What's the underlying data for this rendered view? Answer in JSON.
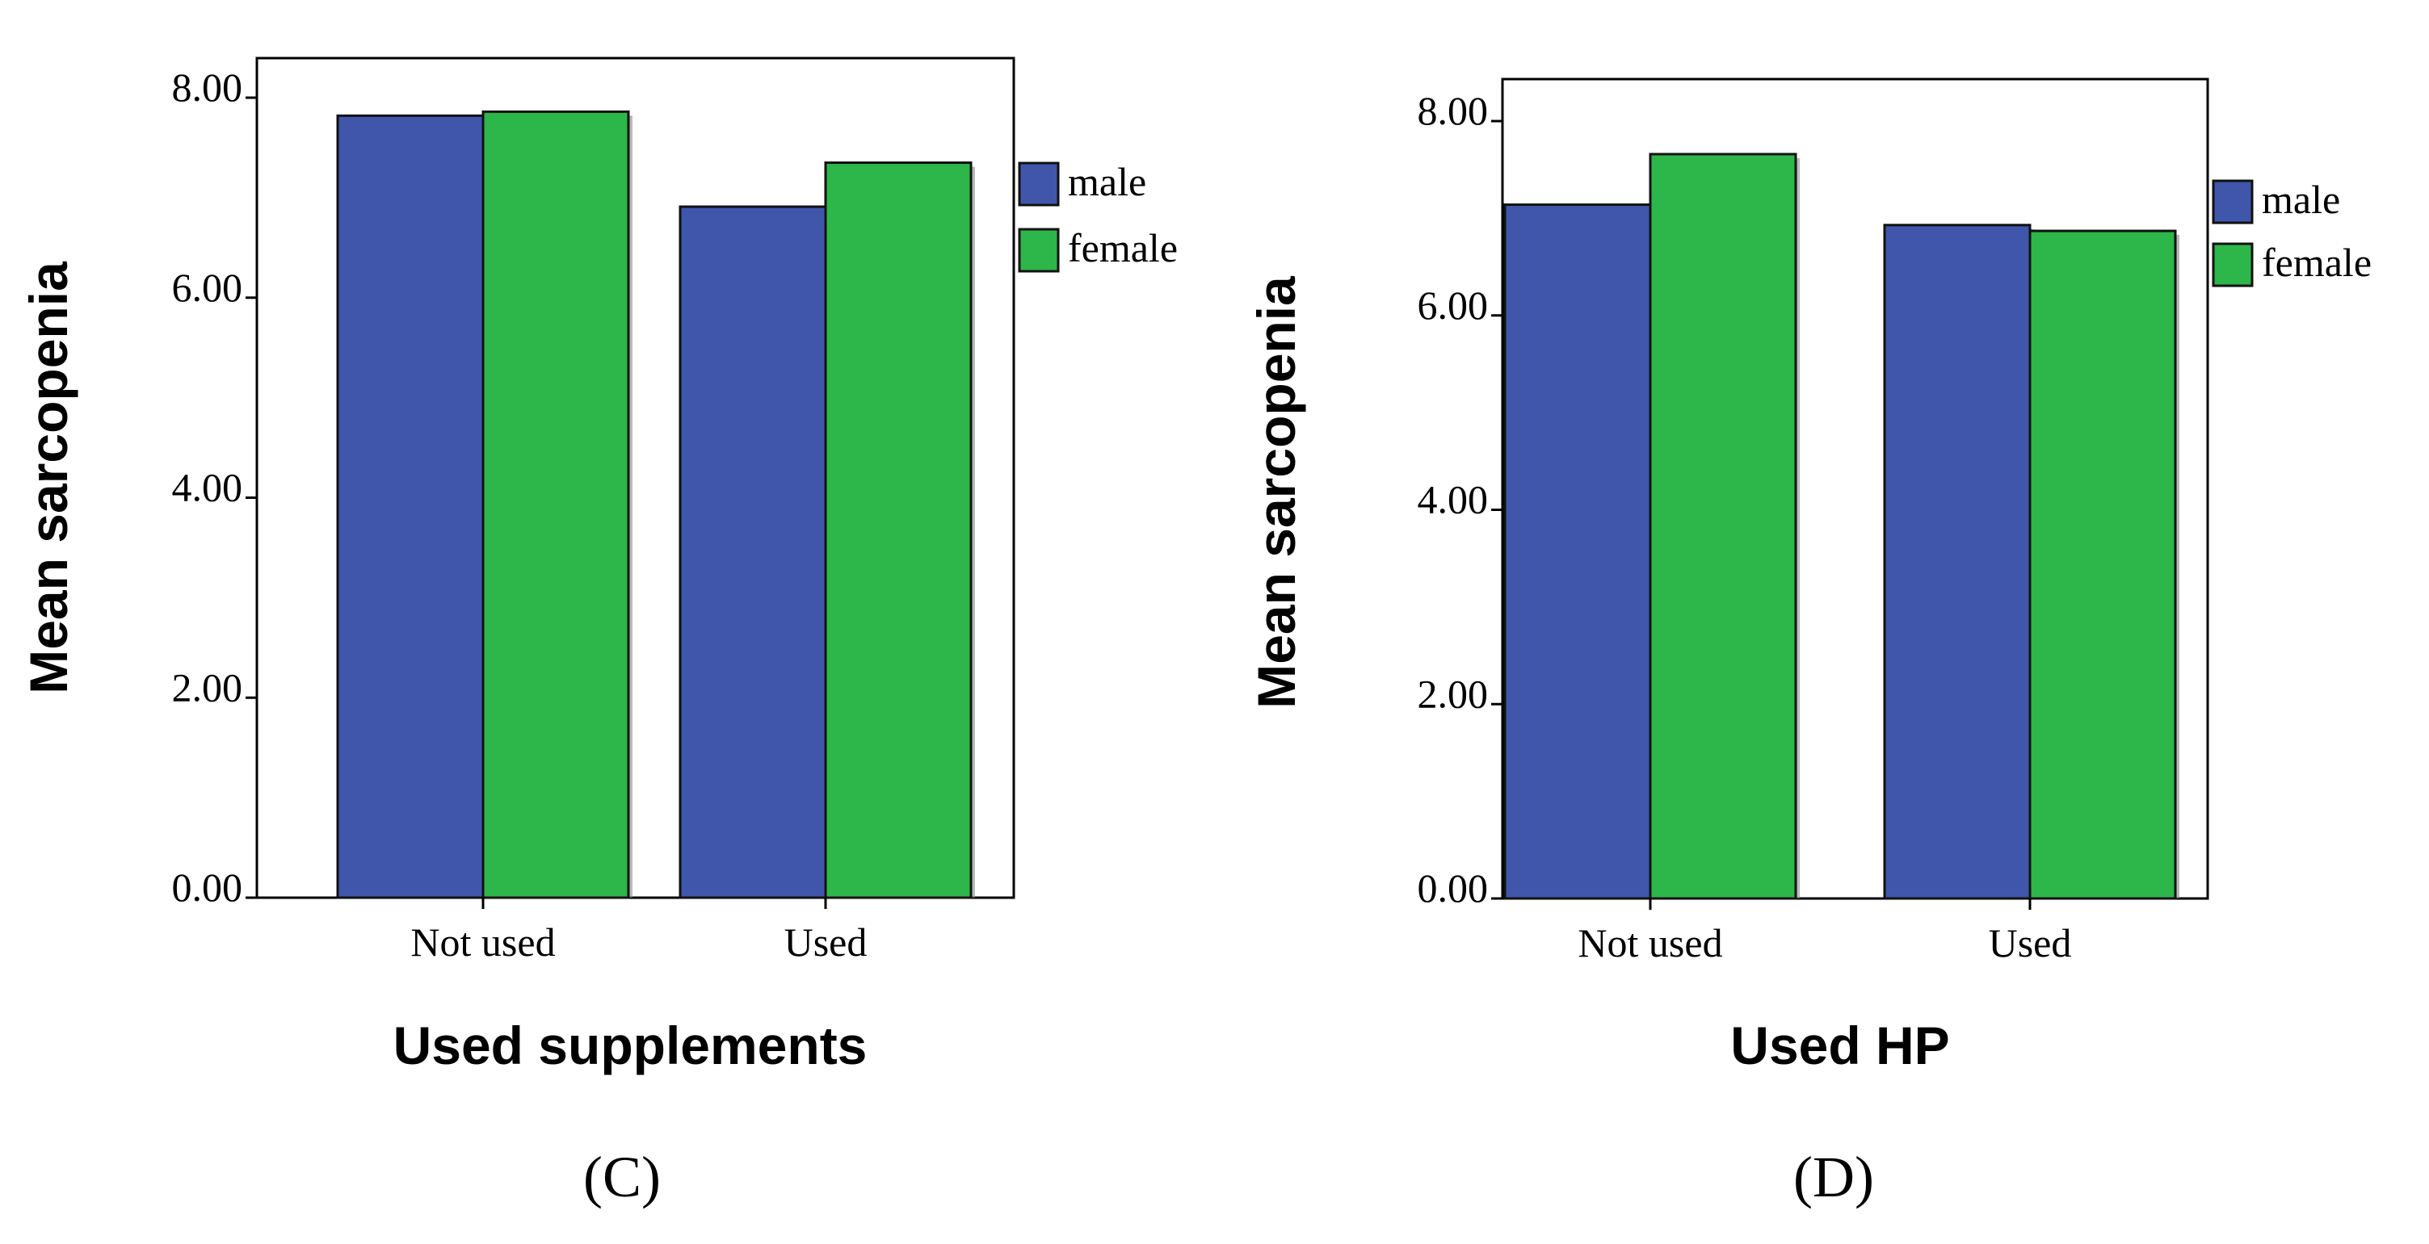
{
  "chart_data": [
    {
      "type": "bar",
      "panel_label": "(C)",
      "xlabel": "Used supplements",
      "ylabel": "Mean sarcopenia",
      "categories": [
        "Not used",
        "Used"
      ],
      "series": [
        {
          "name": "male",
          "color": "#3f56ab",
          "values": [
            7.82,
            6.91
          ]
        },
        {
          "name": "female",
          "color": "#2db649",
          "values": [
            7.86,
            7.35
          ]
        }
      ],
      "ylim": [
        0,
        8.4
      ],
      "yticks": [
        0,
        2,
        4,
        6,
        8
      ],
      "ytick_labels": [
        "0.00",
        "2.00",
        "4.00",
        "6.00",
        "8.00"
      ],
      "legend_position": "right"
    },
    {
      "type": "bar",
      "panel_label": "(D)",
      "xlabel": "Used HP",
      "ylabel": "Mean sarcopenia",
      "categories": [
        "Not used",
        "Used"
      ],
      "series": [
        {
          "name": "male",
          "color": "#3f56ab",
          "values": [
            7.14,
            6.93
          ]
        },
        {
          "name": "female",
          "color": "#2db649",
          "values": [
            7.66,
            6.87
          ]
        }
      ],
      "ylim": [
        0,
        8.4
      ],
      "yticks": [
        0,
        2,
        4,
        6,
        8
      ],
      "ytick_labels": [
        "0.00",
        "2.00",
        "4.00",
        "6.00",
        "8.00"
      ],
      "legend_position": "right"
    }
  ]
}
